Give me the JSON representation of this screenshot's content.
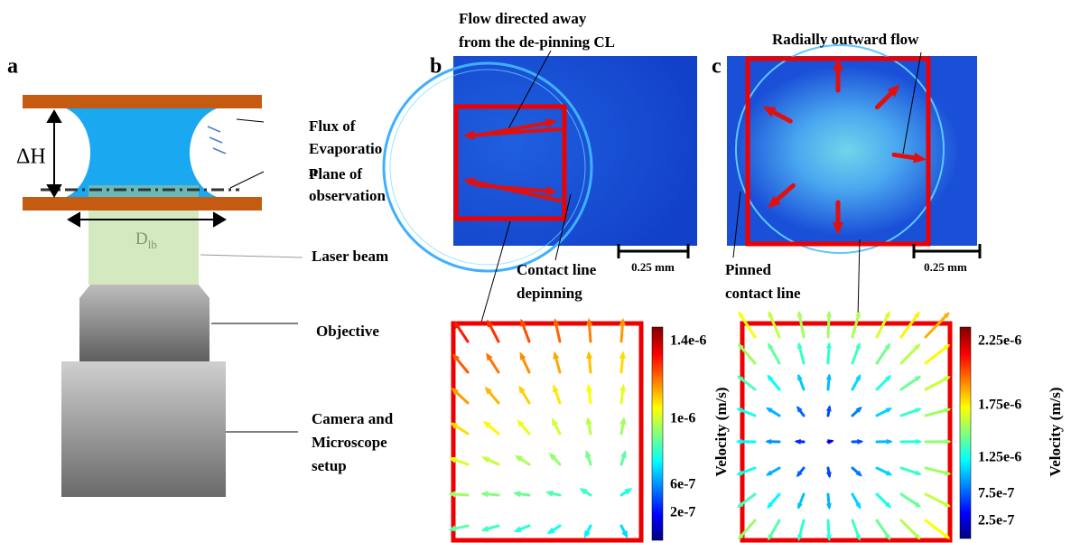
{
  "panel_a": {
    "label": "a",
    "delta_h": "ΔH",
    "beam_diameter": {
      "symbol": "D",
      "subscript": "lb"
    },
    "flux": [
      "Flux of",
      "Evaporatio",
      "n"
    ],
    "plane": [
      "Plane of",
      "observation"
    ],
    "laser": "Laser beam",
    "objective": "Objective",
    "camera": [
      "Camera and",
      "Microscope",
      "setup"
    ]
  },
  "panel_b": {
    "label": "b",
    "annotation": [
      "Flow directed away",
      "from the de-pinning CL"
    ],
    "scale_bar": "0.25 mm",
    "contact_line": [
      "Contact line",
      "depinning"
    ],
    "colorbar": {
      "label": "Velocity (m/s)",
      "ticks": [
        "1.4e-6",
        "1e-6",
        "6e-7",
        "2e-7"
      ]
    }
  },
  "panel_c": {
    "label": "c",
    "annotation": "Radially outward flow",
    "scale_bar": "0.25 mm",
    "contact_line": [
      "Pinned",
      "contact line"
    ],
    "colorbar": {
      "label": "Velocity (m/s)",
      "ticks": [
        "2.25e-6",
        "1.75e-6",
        "1.25e-6",
        "7.5e-7",
        "2.5e-7"
      ]
    }
  }
}
